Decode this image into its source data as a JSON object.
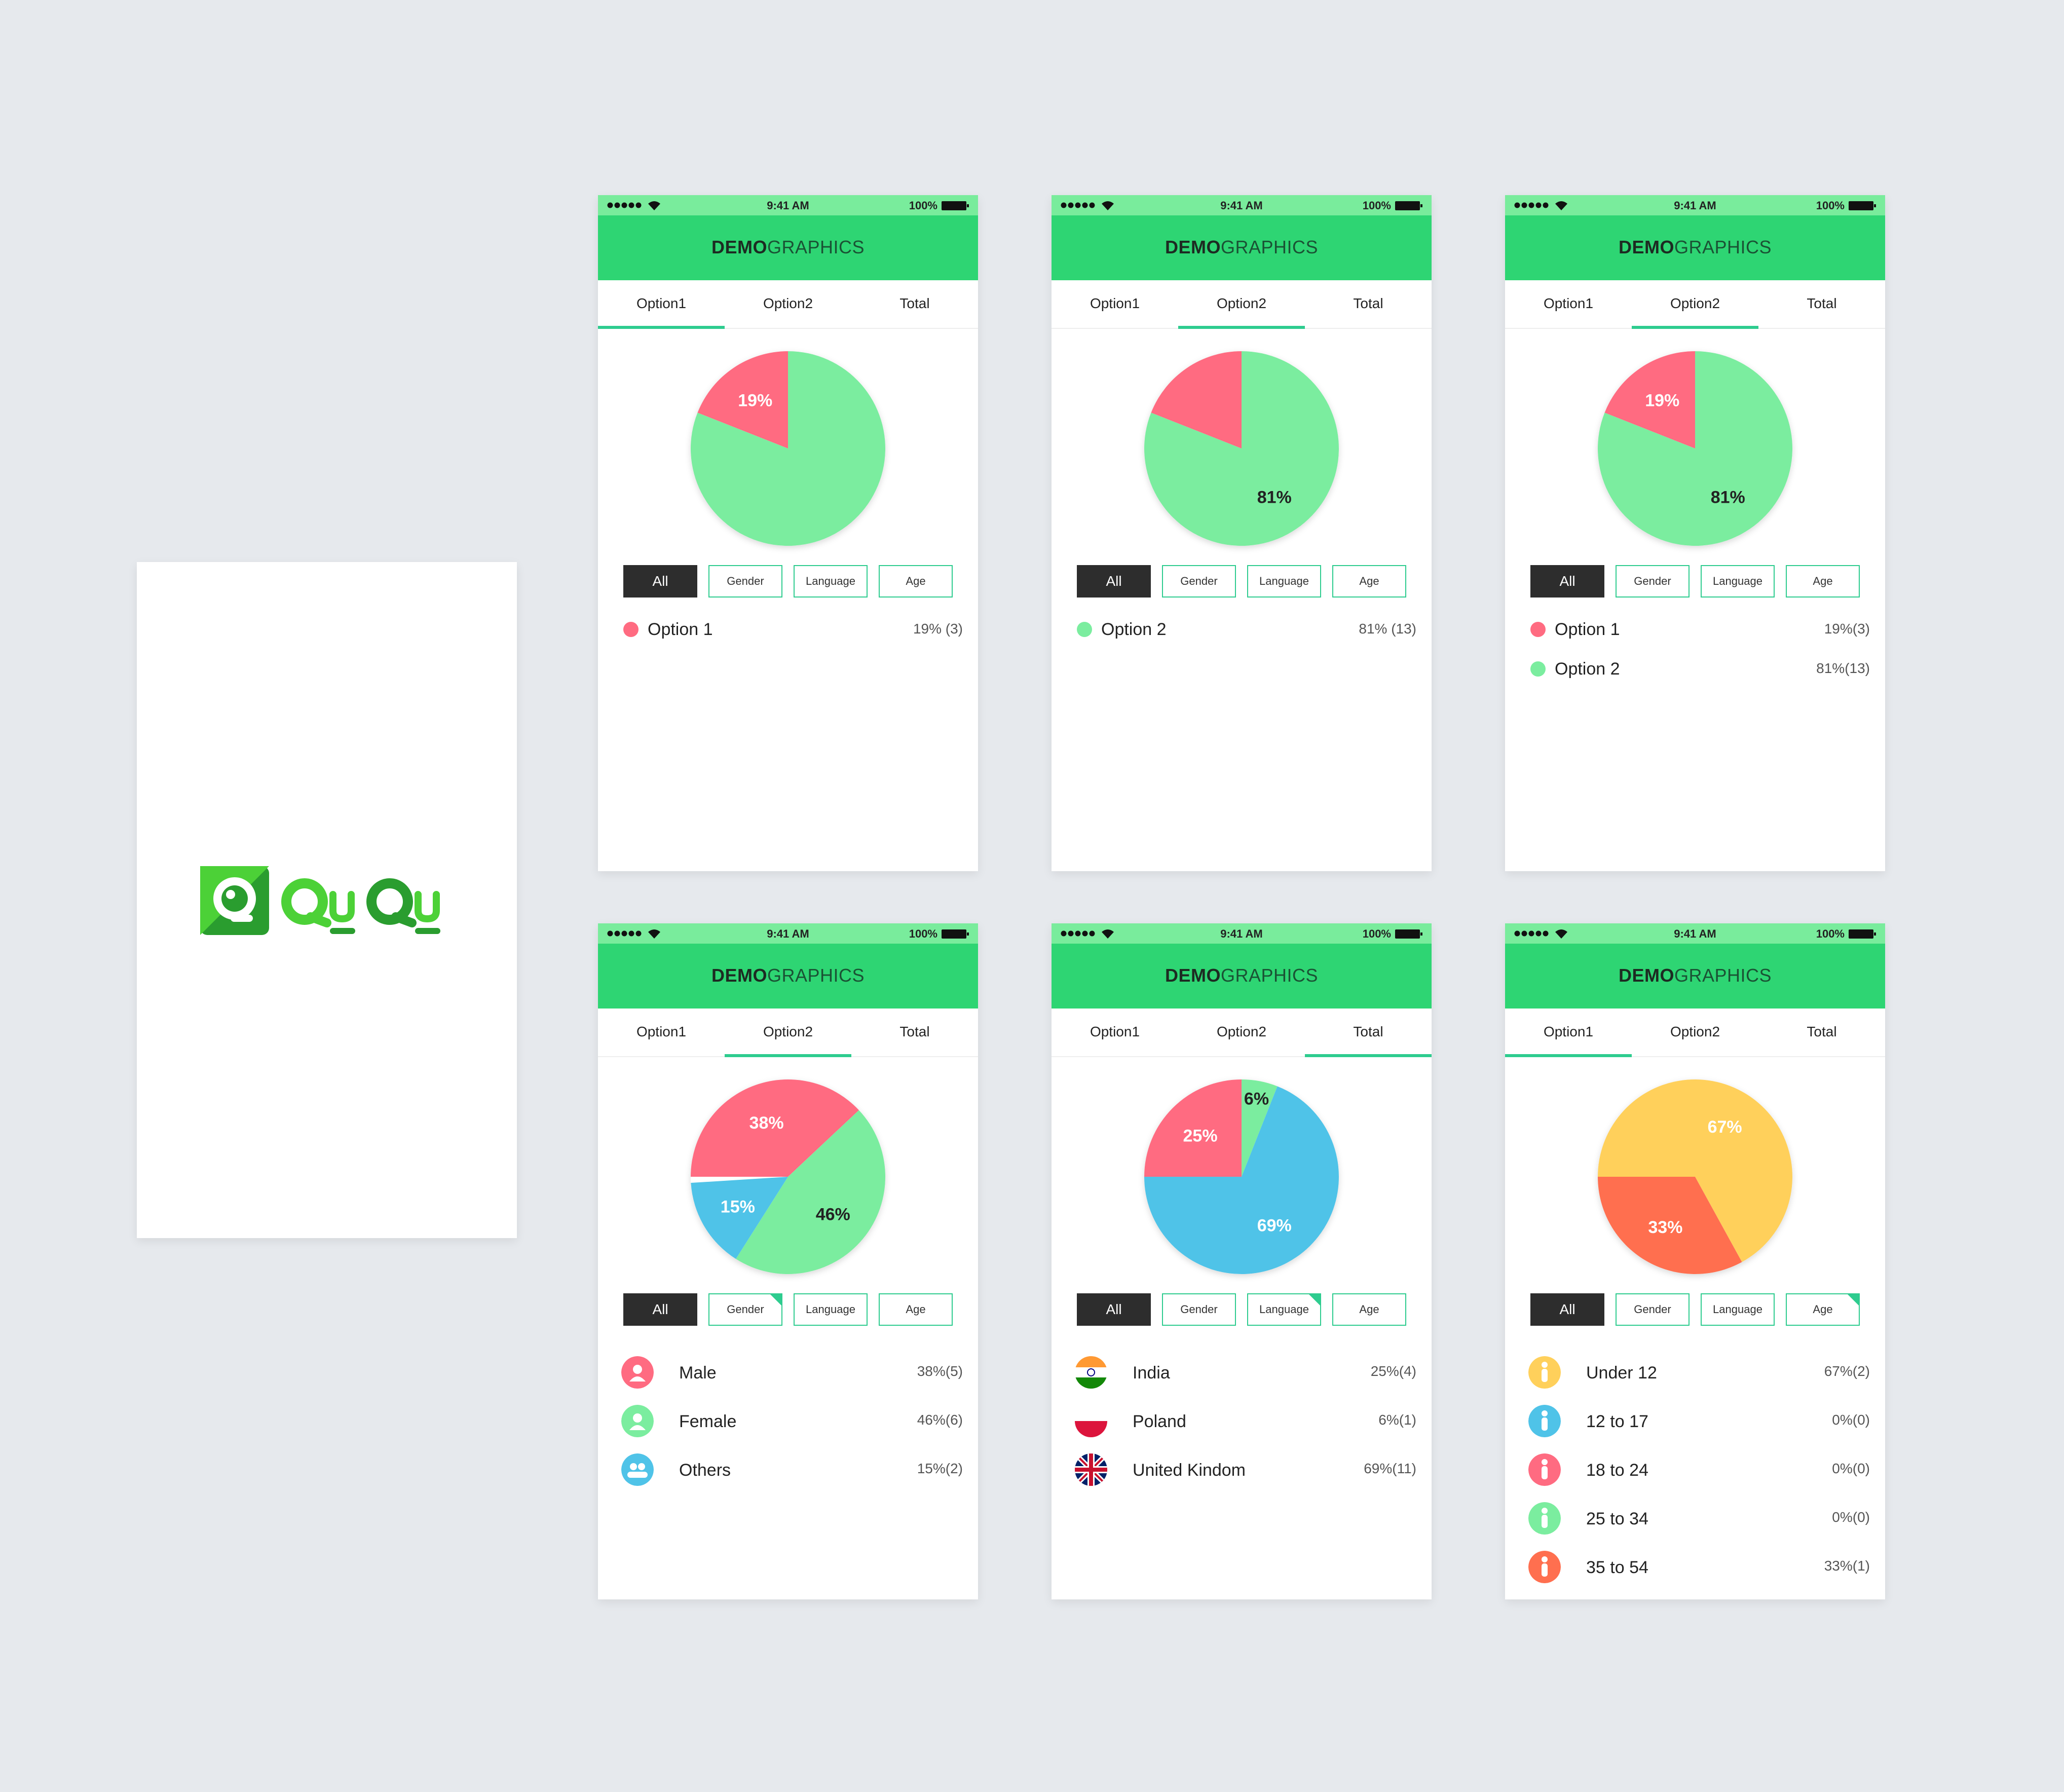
{
  "logo": {
    "text": "QuQu",
    "color_dark": "#2a9d2f",
    "color_light": "#4cd137"
  },
  "common": {
    "status_time": "9:41 AM",
    "battery": "100%",
    "title_bold": "DEMO",
    "title_light": "GRAPHICS",
    "tabs": [
      "Option1",
      "Option2",
      "Total"
    ],
    "filters": [
      "All",
      "Gender",
      "Language",
      "Age"
    ]
  },
  "colors": {
    "green_bar": "#2ed573",
    "status_green": "#79ec9c",
    "pink": "#ff6b81",
    "light_green": "#7bed9f",
    "blue": "#4fc3e8",
    "yellow": "#ffd05b",
    "orange": "#ff6f4f",
    "accent": "#2ecc8f"
  },
  "screens": [
    {
      "active_tab": 0,
      "active_filter_corner": -1,
      "chart": [
        {
          "pct": 19,
          "label": "19%"
        },
        {
          "pct": 81,
          "label": ""
        }
      ],
      "rows": [
        {
          "label": "Option 1",
          "value": "19% (3)",
          "color": "#ff6b81"
        }
      ]
    },
    {
      "active_tab": 1,
      "active_filter_corner": -1,
      "chart": [
        {
          "pct": 19,
          "label": ""
        },
        {
          "pct": 81,
          "label": "81%"
        }
      ],
      "rows": [
        {
          "label": "Option 2",
          "value": "81% (13)",
          "color": "#7bed9f"
        }
      ]
    },
    {
      "active_tab": 1,
      "active_filter_corner": -1,
      "chart": [
        {
          "pct": 19,
          "label": "19%"
        },
        {
          "pct": 81,
          "label": "81%"
        }
      ],
      "rows": [
        {
          "label": "Option 1",
          "value": "19%(3)",
          "color": "#ff6b81"
        },
        {
          "label": "Option 2",
          "value": "81%(13)",
          "color": "#7bed9f"
        }
      ]
    },
    {
      "active_tab": 1,
      "active_filter_corner": 1,
      "chart": [
        {
          "pct": 38,
          "label": "38%"
        },
        {
          "pct": 46,
          "label": "46%"
        },
        {
          "pct": 15,
          "label": "15%"
        }
      ],
      "rows": [
        {
          "label": "Male",
          "value": "38%(5)",
          "icon": "male-icon"
        },
        {
          "label": "Female",
          "value": "46%(6)",
          "icon": "female-icon"
        },
        {
          "label": "Others",
          "value": "15%(2)",
          "icon": "others-icon"
        }
      ]
    },
    {
      "active_tab": 2,
      "active_filter_corner": 2,
      "chart": [
        {
          "pct": 6,
          "label": "6%"
        },
        {
          "pct": 69,
          "label": "69%"
        },
        {
          "pct": 25,
          "label": "25%"
        }
      ],
      "rows": [
        {
          "label": "India",
          "value": "25%(4)",
          "icon": "india-flag-icon"
        },
        {
          "label": "Poland",
          "value": "6%(1)",
          "icon": "poland-flag-icon"
        },
        {
          "label": "United Kindom",
          "value": "69%(11)",
          "icon": "uk-flag-icon"
        }
      ]
    },
    {
      "active_tab": 0,
      "active_filter_corner": 3,
      "chart": [
        {
          "pct": 67,
          "label": "67%"
        },
        {
          "pct": 33,
          "label": "33%"
        }
      ],
      "rows": [
        {
          "label": "Under 12",
          "value": "67%(2)",
          "icon": "child-icon"
        },
        {
          "label": "12 to 17",
          "value": "0%(0)",
          "icon": "teen-icon"
        },
        {
          "label": "18 to 24",
          "value": "0%(0)",
          "icon": "young-adult-icon"
        },
        {
          "label": "25 to 34",
          "value": "0%(0)",
          "icon": "adult-icon"
        },
        {
          "label": "35 to 54",
          "value": "33%(1)",
          "icon": "senior-icon"
        }
      ]
    }
  ]
}
